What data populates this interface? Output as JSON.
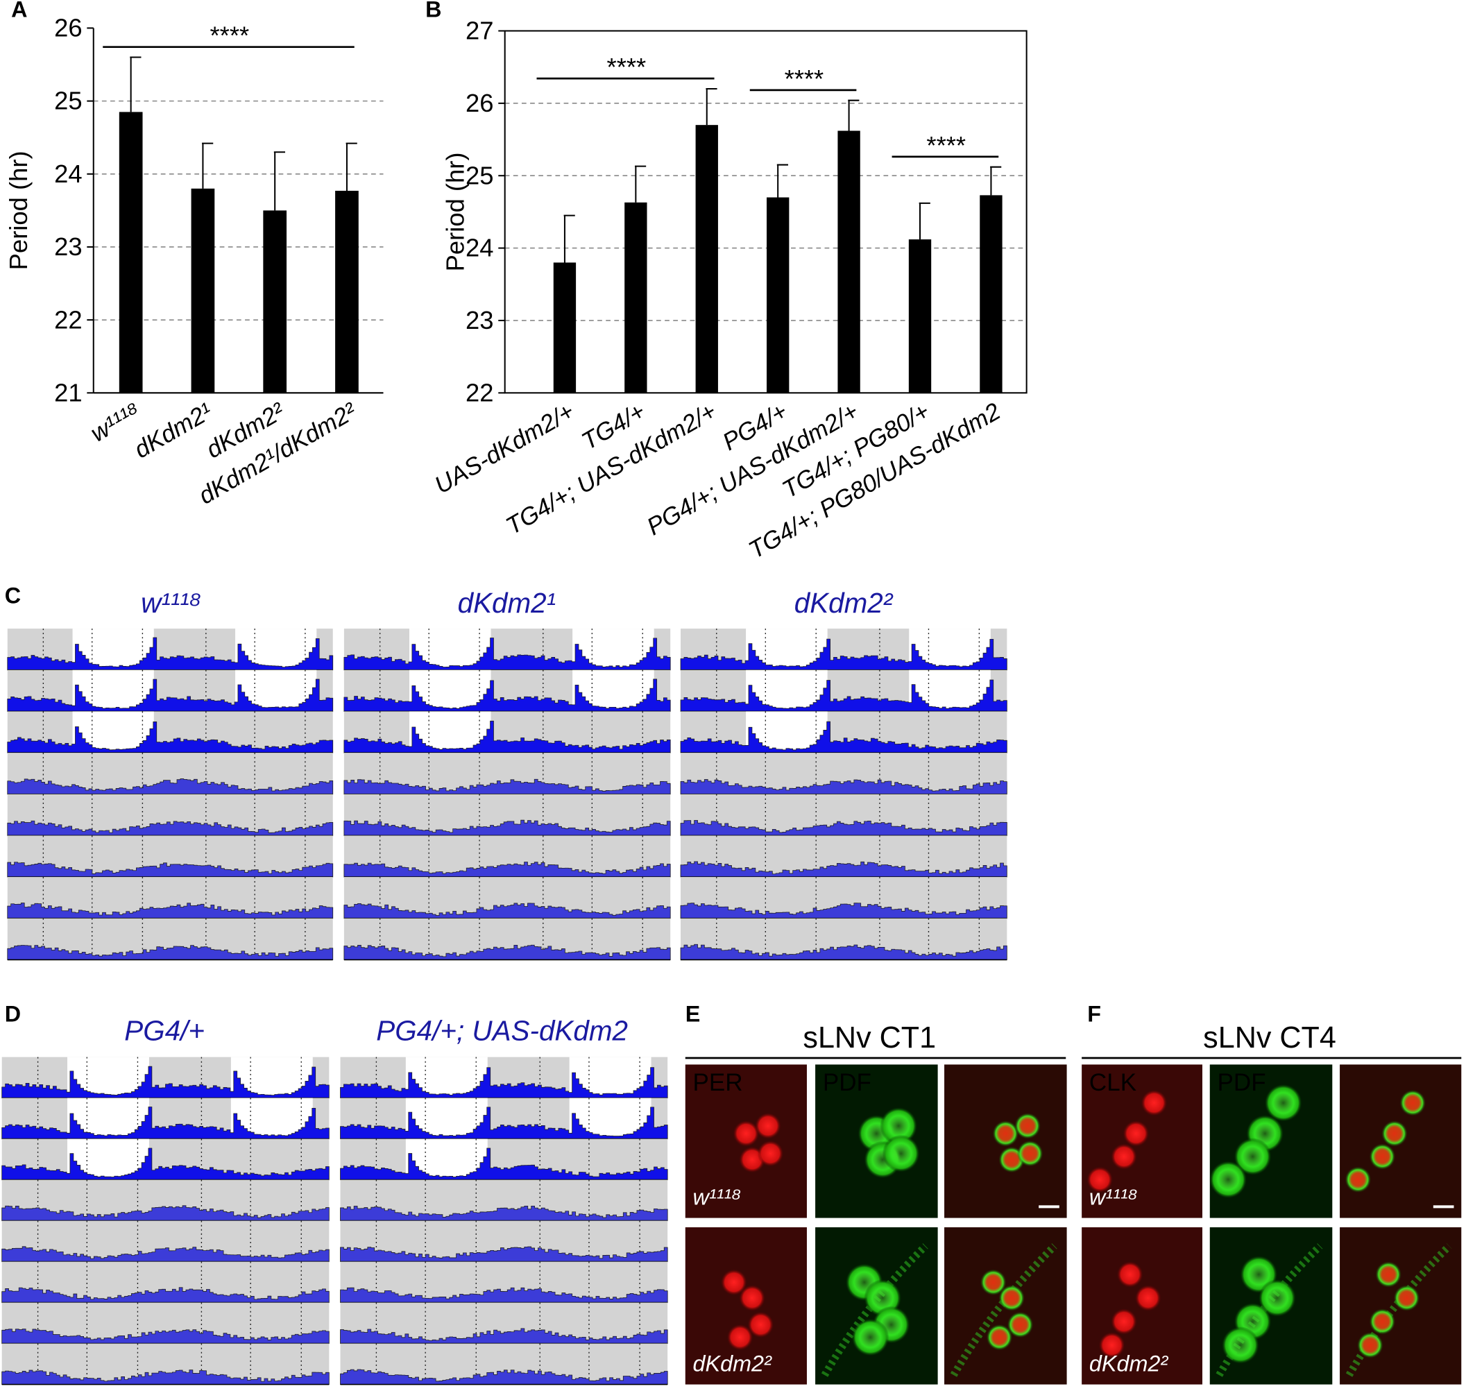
{
  "chart_data": [
    {
      "type": "bar",
      "panel": "A",
      "ylabel": "Period (hr)",
      "categories": [
        "w¹¹¹⁸",
        "dKdm2¹",
        "dKdm2²",
        "dKdm2¹/dKdm2²"
      ],
      "values": [
        24.85,
        23.8,
        23.5,
        23.77
      ],
      "errors": [
        0.75,
        0.62,
        0.8,
        0.65
      ],
      "color": "#000000",
      "ylim": [
        21,
        26
      ],
      "yticks": [
        21,
        22,
        23,
        24,
        25,
        26
      ],
      "grid": true,
      "significance": [
        {
          "label": "****",
          "from": 0,
          "to": 3
        }
      ]
    },
    {
      "type": "bar",
      "panel": "B",
      "ylabel": "Period (hr)",
      "categories": [
        "UAS-dKdm2/+",
        "TG4/+",
        "TG4/+; UAS-dKdm2/+",
        "PG4/+",
        "PG4/+; UAS-dKdm2/+",
        "TG4/+; PG80/+",
        "TG4/+; PG80/UAS-dKdm2"
      ],
      "values": [
        23.8,
        24.63,
        25.7,
        24.7,
        25.62,
        24.12,
        24.73
      ],
      "errors": [
        0.65,
        0.5,
        0.5,
        0.45,
        0.42,
        0.5,
        0.39
      ],
      "color": "#000000",
      "ylim": [
        22,
        27
      ],
      "yticks": [
        22,
        23,
        24,
        25,
        26,
        27
      ],
      "grid": true,
      "significance": [
        {
          "label": "****",
          "from": 0,
          "to": 2
        },
        {
          "label": "****",
          "from": 3,
          "to": 4
        },
        {
          "label": "****",
          "from": 5,
          "to": 6
        }
      ]
    }
  ],
  "actograms": [
    {
      "panel": "C",
      "titles": [
        "w¹¹¹⁸",
        "dKdm2¹",
        "dKdm2²"
      ]
    },
    {
      "panel": "D",
      "titles": [
        "PG4/+",
        "PG4/+; UAS-dKdm2"
      ]
    }
  ],
  "micrographs": [
    {
      "panel": "E",
      "title": "sLNv CT1",
      "channels": [
        "PER",
        "PDF"
      ],
      "genotypes": [
        "w¹¹¹⁸",
        "dKdm2²"
      ]
    },
    {
      "panel": "F",
      "title": "sLNv CT4",
      "channels": [
        "CLK",
        "PDF"
      ],
      "genotypes": [
        "w¹¹¹⁸",
        "dKdm2²"
      ]
    }
  ]
}
